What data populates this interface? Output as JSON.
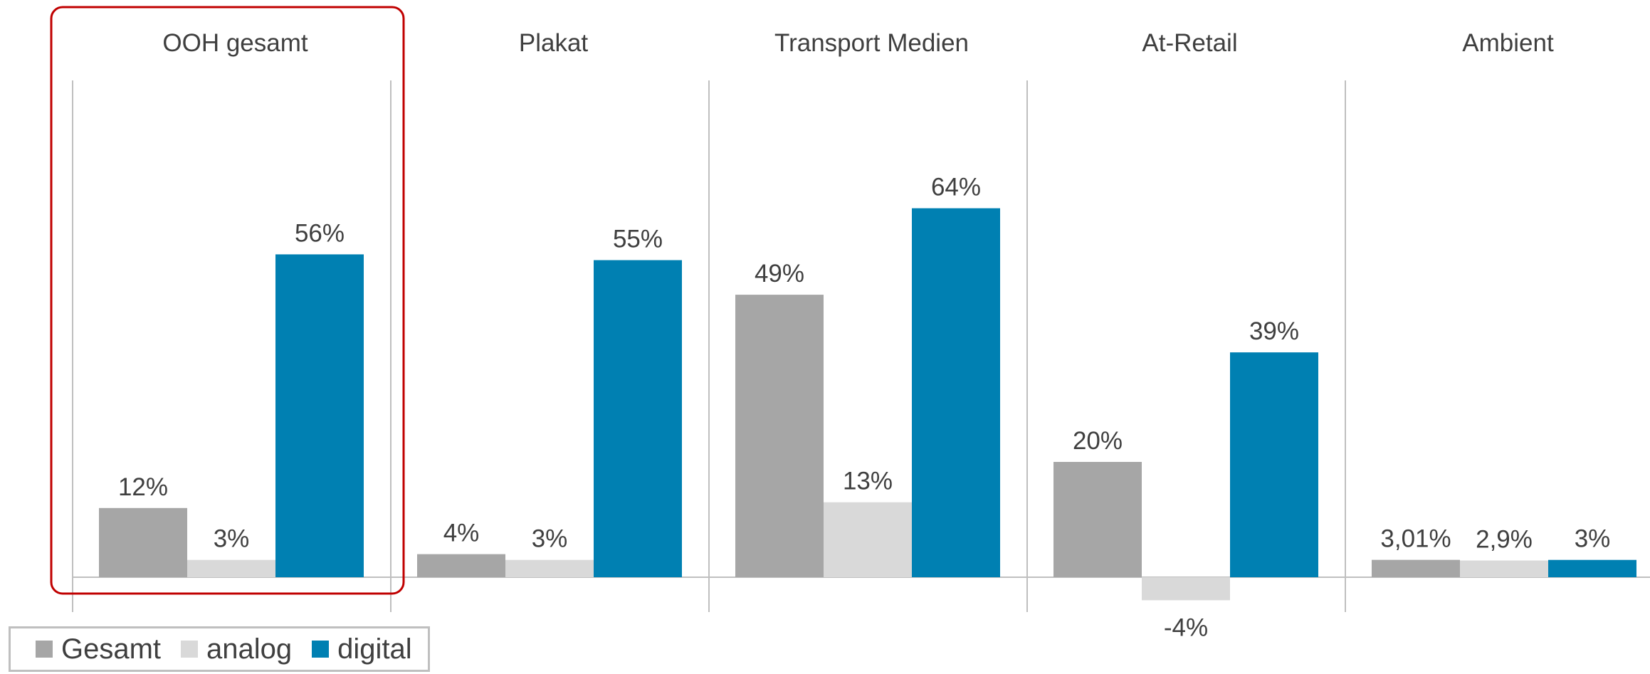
{
  "chart_data": {
    "type": "bar",
    "categories": [
      "OOH gesamt",
      "Plakat",
      "Transport Medien",
      "At-Retail",
      "Ambient"
    ],
    "series": [
      {
        "name": "Gesamt",
        "values": [
          12,
          4,
          49,
          20,
          3.01
        ],
        "labels": [
          "12%",
          "4%",
          "49%",
          "20%",
          "3,01%"
        ],
        "color": "#a6a6a6"
      },
      {
        "name": "analog",
        "values": [
          3,
          3,
          13,
          -4,
          2.9
        ],
        "labels": [
          "3%",
          "3%",
          "13%",
          "-4%",
          "2,9%"
        ],
        "color": "#d9d9d9"
      },
      {
        "name": "digital",
        "values": [
          56,
          55,
          64,
          39,
          3
        ],
        "labels": [
          "56%",
          "55%",
          "64%",
          "39%",
          "3%"
        ],
        "color": "#0080b2"
      }
    ],
    "ylim": [
      -5,
      70
    ],
    "highlighted_category": "OOH gesamt",
    "highlight_color": "#c00000",
    "legend_placement": "bottom-left",
    "grid": false
  }
}
